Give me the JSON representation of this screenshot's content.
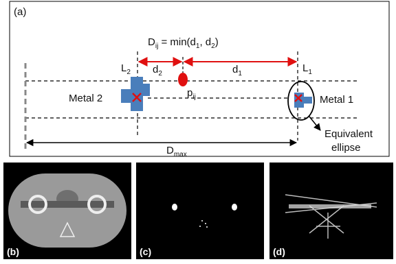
{
  "panel_a": {
    "label": "(a)",
    "formula": [
      "D",
      "ij",
      " = min(d",
      "1",
      ", d",
      "2",
      ")"
    ],
    "l2": {
      "base": "L",
      "sub": "2"
    },
    "l1": {
      "base": "L",
      "sub": "1"
    },
    "d2": {
      "base": "d",
      "sub": "2"
    },
    "d1": {
      "base": "d",
      "sub": "1"
    },
    "pij": {
      "base": "p",
      "sub": "ij"
    },
    "metal2": "Metal 2",
    "metal1": "Metal 1",
    "ellipse_label": [
      "Equivalent",
      "ellipse"
    ],
    "dmax": {
      "base": "D",
      "sub": "max"
    }
  },
  "panel_b": {
    "label": "(b)"
  },
  "panel_c": {
    "label": "(c)"
  },
  "panel_d": {
    "label": "(d)"
  }
}
